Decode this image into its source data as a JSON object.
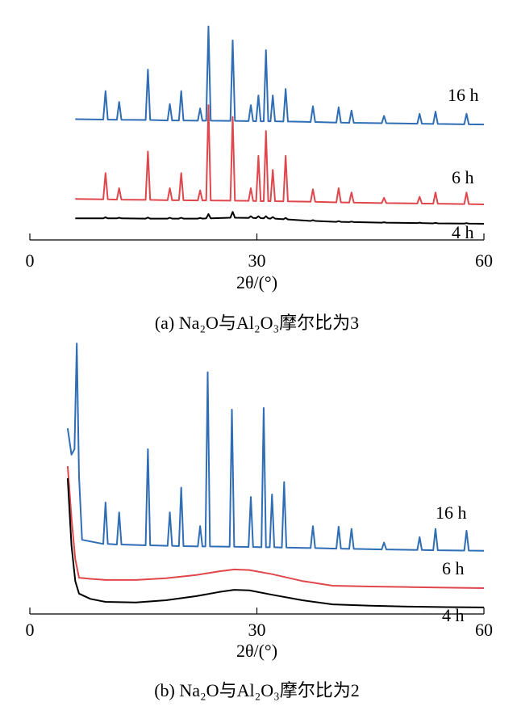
{
  "chart_data": [
    {
      "type": "line",
      "caption": "(a) Na₂O与Al₂O₃摩尔比为3",
      "xlabel": "2θ/(°)",
      "xlim": [
        0,
        60
      ],
      "xticks": [
        0,
        30,
        60
      ],
      "ylim": [
        0,
        100
      ],
      "x": [
        6,
        9.7,
        10,
        10.3,
        11.5,
        11.8,
        12.1,
        15.3,
        15.6,
        15.9,
        18.2,
        18.5,
        18.8,
        19.7,
        20,
        20.3,
        22.2,
        22.5,
        22.8,
        23.3,
        23.6,
        23.9,
        26.5,
        26.8,
        27.1,
        28.9,
        29.2,
        29.5,
        29.9,
        30.2,
        30.5,
        30.9,
        31.2,
        31.5,
        31.8,
        32.1,
        32.4,
        33.5,
        33.8,
        34.1,
        37.1,
        37.4,
        37.7,
        40.5,
        40.8,
        41.1,
        42.2,
        42.5,
        42.8,
        46.5,
        46.8,
        47.1,
        51.2,
        51.5,
        51.8,
        53.3,
        53.6,
        53.9,
        57.4,
        57.7,
        58,
        60
      ],
      "series": [
        {
          "name": "16 h",
          "color": "#2f6db5",
          "values": [
            56,
            55.8,
            69,
            55.8,
            55.7,
            64,
            55.7,
            55.6,
            79,
            55.6,
            55.4,
            63,
            55.4,
            55.4,
            69,
            55.4,
            55.3,
            61,
            55.3,
            55.3,
            99,
            55.3,
            55.2,
            92.5,
            55.2,
            55.1,
            62.5,
            55.1,
            55,
            67,
            55,
            55,
            88,
            55,
            55,
            67,
            55,
            54.9,
            70,
            54.9,
            54.7,
            62,
            54.7,
            54.4,
            61.5,
            54.4,
            54.3,
            60,
            54.3,
            54.1,
            57.5,
            54.1,
            53.9,
            58.5,
            53.9,
            53.8,
            59.5,
            53.8,
            53.6,
            58.5,
            53.6,
            53.5
          ]
        },
        {
          "name": "6 h",
          "color": "#e0474c",
          "values": [
            19,
            18.8,
            31,
            18.8,
            18.7,
            24,
            18.7,
            18.6,
            41,
            18.6,
            18.4,
            24,
            18.4,
            18.4,
            31,
            18.4,
            18.3,
            23,
            18.3,
            18.3,
            62.5,
            18.3,
            18.2,
            57,
            18.2,
            18.1,
            24,
            18.1,
            18,
            39,
            18,
            18,
            50.5,
            18,
            18,
            32.5,
            18,
            17.9,
            39,
            17.9,
            17.7,
            23.5,
            17.7,
            17.4,
            24,
            17.4,
            17.3,
            22,
            17.3,
            17.1,
            19.5,
            17.1,
            16.9,
            20,
            16.9,
            16.8,
            22,
            16.8,
            16.6,
            22,
            16.6,
            16.5
          ]
        },
        {
          "name": "4 h",
          "color": "#000000",
          "values": [
            10,
            10,
            10.5,
            10,
            10,
            10.3,
            10,
            9.9,
            10.4,
            9.9,
            9.9,
            10.3,
            9.9,
            9.9,
            10.3,
            9.9,
            9.9,
            10.2,
            9.9,
            10,
            12,
            10,
            10.3,
            13,
            10.3,
            10.2,
            11,
            10.2,
            10.1,
            11,
            10.1,
            10,
            11,
            10,
            9.9,
            10.6,
            9.9,
            9.6,
            10.2,
            9.5,
            8.8,
            9.2,
            8.8,
            8.4,
            8.7,
            8.4,
            8.3,
            8.5,
            8.3,
            8,
            8.2,
            8,
            7.8,
            8,
            7.8,
            7.7,
            7.9,
            7.7,
            7.6,
            7.8,
            7.6,
            7.5
          ]
        }
      ]
    },
    {
      "type": "line",
      "caption": "(b) Na₂O与Al₂O₃摩尔比为2",
      "xlabel": "2θ/(°)",
      "xlim": [
        0,
        60
      ],
      "xticks": [
        0,
        30,
        60
      ],
      "ylim": [
        0,
        100
      ],
      "series": [
        {
          "name": "16 h",
          "color": "#2f6db5",
          "x": [
            5,
            5.5,
            5.9,
            6.2,
            6.5,
            6.9,
            9.7,
            10,
            10.3,
            11.5,
            11.8,
            12.1,
            15.3,
            15.6,
            15.9,
            18.2,
            18.5,
            18.8,
            19.7,
            20,
            20.3,
            22.2,
            22.5,
            22.8,
            23.2,
            23.5,
            23.8,
            26.4,
            26.7,
            27,
            28.9,
            29.2,
            29.5,
            30.6,
            30.9,
            31.2,
            31.7,
            32,
            32.3,
            33.3,
            33.6,
            33.9,
            37.1,
            37.4,
            37.7,
            40.5,
            40.8,
            41.1,
            42.2,
            42.5,
            42.8,
            46.5,
            46.8,
            47.1,
            51.2,
            51.5,
            51.8,
            53.3,
            53.6,
            53.9,
            57.4,
            57.7,
            58,
            60
          ],
          "values": [
            67.6,
            58,
            60,
            98.5,
            50,
            27,
            25.5,
            40.6,
            25.5,
            25.3,
            37,
            25.3,
            25,
            60,
            25,
            24.8,
            37,
            24.8,
            24.7,
            46,
            24.7,
            24.6,
            32,
            24.6,
            24.6,
            88,
            24.6,
            24.5,
            74.4,
            24.5,
            24.4,
            42.6,
            24.4,
            24.3,
            75,
            24.3,
            24.3,
            43.5,
            24.3,
            24.2,
            48,
            24.2,
            24,
            32,
            24,
            23.8,
            31.8,
            23.8,
            23.7,
            31,
            23.7,
            23.5,
            26,
            23.5,
            23.3,
            28,
            23.3,
            23.2,
            31,
            23.2,
            23.1,
            30.3,
            23.1,
            23
          ]
        },
        {
          "name": "6 h",
          "color": "#e0474c",
          "x": [
            5,
            5.5,
            6,
            6.5,
            8,
            10,
            14,
            18,
            22,
            25,
            27,
            29,
            32,
            36,
            40,
            45,
            50,
            55,
            60
          ],
          "values": [
            53.8,
            35,
            20,
            13.2,
            12.8,
            12.4,
            12.4,
            13,
            14.2,
            15.5,
            16.2,
            16,
            14.5,
            12,
            10.3,
            10,
            9.8,
            9.6,
            9.4
          ]
        },
        {
          "name": "4 h",
          "color": "#000000",
          "x": [
            5,
            5.5,
            6,
            6.5,
            8,
            10,
            14,
            18,
            22,
            25,
            27,
            29,
            32,
            36,
            40,
            45,
            50,
            55,
            60
          ],
          "values": [
            49.4,
            25,
            12,
            7.4,
            5.5,
            4.4,
            4.2,
            5,
            6.5,
            8,
            8.8,
            8.6,
            7,
            5,
            3.5,
            3,
            2.7,
            2.5,
            2.4
          ]
        }
      ]
    }
  ]
}
